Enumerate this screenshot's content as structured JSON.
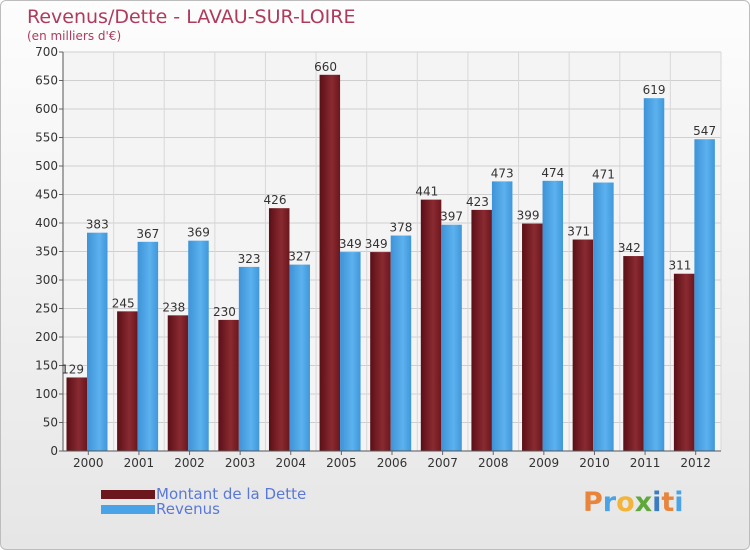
{
  "title": "Revenus/Dette - LAVAU-SUR-LOIRE",
  "subtitle": "(en milliers d'€)",
  "colors": {
    "debt": "#7a1c22",
    "revenue": "#4aa3e6",
    "title": "#b03a5b",
    "legend_text": "#5a78d8"
  },
  "logo": {
    "letters": [
      "P",
      "r",
      "o",
      "x",
      "i",
      "t",
      "i"
    ],
    "colors": [
      "#e8843c",
      "#4aa3e6",
      "#f2b53a",
      "#5fa83a",
      "#3a7cc2",
      "#e8843c",
      "#4aa3e6"
    ]
  },
  "chart_data": {
    "type": "bar",
    "title": "Revenus/Dette - LAVAU-SUR-LOIRE",
    "subtitle": "(en milliers d'€)",
    "categories": [
      "2000",
      "2001",
      "2002",
      "2003",
      "2004",
      "2005",
      "2006",
      "2007",
      "2008",
      "2009",
      "2010",
      "2011",
      "2012"
    ],
    "series": [
      {
        "name": "Montant de la Dette",
        "values": [
          129,
          245,
          238,
          230,
          426,
          660,
          349,
          441,
          423,
          399,
          371,
          342,
          311
        ]
      },
      {
        "name": "Revenus",
        "values": [
          383,
          367,
          369,
          323,
          327,
          349,
          378,
          397,
          473,
          474,
          471,
          619,
          547
        ]
      }
    ],
    "ylim": [
      0,
      700
    ],
    "yticks": [
      "0",
      "50",
      "100",
      "150",
      "200",
      "250",
      "300",
      "350",
      "400",
      "450",
      "500",
      "550",
      "600",
      "650",
      "700"
    ],
    "grid": true,
    "legend_position": "bottom-left"
  }
}
